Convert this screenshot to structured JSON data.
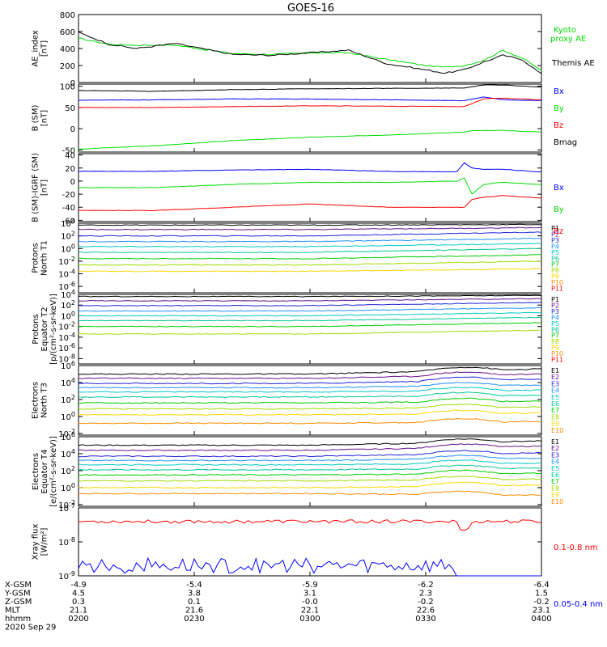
{
  "title": "GOES-16",
  "colors": {
    "black": "#000000",
    "blue": "#0000ff",
    "green": "#00dd00",
    "red": "#ff0000",
    "p": [
      "#000000",
      "#6a0f8e",
      "#2222dd",
      "#1e90ff",
      "#00c8c8",
      "#00c896",
      "#00cc00",
      "#a0dc00",
      "#ffd700",
      "#ff8c00",
      "#ff0000",
      "#c80000"
    ]
  },
  "chart_data": [
    {
      "id": "ae",
      "type": "line",
      "ylabel": [
        "AE_index",
        "[nT]"
      ],
      "ylim": [
        0,
        800
      ],
      "yticks": [
        "0",
        "200",
        "400",
        "600",
        "800"
      ],
      "series": [
        {
          "name": "Kyoto proxy AE",
          "color": "#00dd00",
          "x": [
            0,
            8,
            15,
            25,
            40,
            50,
            60,
            70,
            80,
            90,
            95,
            100,
            105,
            110,
            115,
            120
          ],
          "y": [
            520,
            450,
            440,
            440,
            340,
            330,
            350,
            350,
            270,
            200,
            180,
            200,
            260,
            380,
            290,
            140
          ]
        },
        {
          "name": "Themis AE",
          "color": "#000000",
          "x": [
            0,
            8,
            15,
            25,
            40,
            50,
            60,
            70,
            80,
            90,
            95,
            100,
            105,
            110,
            115,
            120
          ],
          "y": [
            590,
            450,
            400,
            460,
            330,
            320,
            350,
            380,
            220,
            150,
            110,
            150,
            240,
            320,
            270,
            100
          ]
        }
      ]
    },
    {
      "id": "bsm",
      "type": "line",
      "ylabel": [
        "B (SM)",
        "[nT]"
      ],
      "ylim": [
        -55,
        105
      ],
      "yticks": [
        "-50",
        "0",
        "50",
        "100"
      ],
      "series": [
        {
          "name": "Bx",
          "color": "#0000ff",
          "x": [
            0,
            20,
            40,
            60,
            80,
            100,
            105,
            110,
            120
          ],
          "y": [
            67,
            68,
            70,
            70,
            68,
            66,
            75,
            68,
            66
          ]
        },
        {
          "name": "By",
          "color": "#00dd00",
          "x": [
            0,
            20,
            40,
            60,
            80,
            100,
            102,
            110,
            120
          ],
          "y": [
            -48,
            -40,
            -28,
            -20,
            -15,
            -8,
            -5,
            -4,
            -8
          ]
        },
        {
          "name": "Bz",
          "color": "#ff0000",
          "x": [
            0,
            20,
            40,
            60,
            80,
            100,
            105,
            110,
            120
          ],
          "y": [
            50,
            50,
            52,
            54,
            53,
            52,
            70,
            72,
            68
          ]
        },
        {
          "name": "Bmag",
          "color": "#000000",
          "x": [
            0,
            20,
            40,
            60,
            80,
            100,
            105,
            110,
            120
          ],
          "y": [
            90,
            88,
            92,
            94,
            95,
            96,
            103,
            103,
            98
          ]
        }
      ]
    },
    {
      "id": "bigrf",
      "type": "line",
      "ylabel": [
        "B (SM)-IGRF (SM)",
        "[nT]"
      ],
      "ylim": [
        -62,
        42
      ],
      "yticks": [
        "-60",
        "-40",
        "-20",
        "0",
        "20",
        "40"
      ],
      "series": [
        {
          "name": "Bx",
          "color": "#0000ff",
          "x": [
            0,
            20,
            40,
            60,
            80,
            98,
            100,
            102,
            105,
            110,
            120
          ],
          "y": [
            15,
            15,
            17,
            18,
            15,
            14,
            28,
            20,
            18,
            18,
            14
          ]
        },
        {
          "name": "By",
          "color": "#00dd00",
          "x": [
            0,
            20,
            40,
            60,
            80,
            98,
            100,
            102,
            105,
            110,
            120
          ],
          "y": [
            -10,
            -10,
            -5,
            -2,
            -2,
            0,
            5,
            -20,
            -5,
            -2,
            -5
          ]
        },
        {
          "name": "Bz",
          "color": "#ff0000",
          "x": [
            0,
            20,
            40,
            60,
            80,
            98,
            100,
            102,
            105,
            110,
            120
          ],
          "y": [
            -45,
            -45,
            -40,
            -35,
            -40,
            -40,
            -40,
            -28,
            -25,
            -22,
            -26
          ]
        }
      ]
    },
    {
      "id": "pn",
      "type": "line",
      "log": true,
      "ylabel": [
        "Protons",
        "North T1"
      ],
      "ylim": [
        -7,
        4
      ],
      "yticks": [
        "10^4",
        "10^2",
        "10^0",
        "10^-2",
        "10^-4",
        "10^-6"
      ],
      "series": [
        {
          "name": "P1",
          "levels": [
            3.7,
            3.8
          ]
        },
        {
          "name": "P2",
          "levels": [
            3.0,
            3.3
          ]
        },
        {
          "name": "P3",
          "levels": [
            2.0,
            2.6
          ]
        },
        {
          "name": "P4",
          "levels": [
            1.1,
            1.6
          ]
        },
        {
          "name": "P5",
          "levels": [
            0.3,
            0.8
          ]
        },
        {
          "name": "P6",
          "levels": [
            -0.6,
            0.0
          ]
        },
        {
          "name": "P7",
          "levels": [
            -1.6,
            -1.0
          ]
        },
        {
          "name": "P8",
          "levels": [
            -2.6,
            -2.0
          ]
        },
        {
          "name": "P9",
          "levels": [
            -3.6,
            -3.2
          ]
        },
        {
          "name": "P10",
          "levels": null
        },
        {
          "name": "P11",
          "levels": null
        }
      ]
    },
    {
      "id": "pe",
      "type": "line",
      "log": true,
      "ylabel": [
        "Protons",
        "Equator T2",
        "[p/(cm²-s-sr-keV)]"
      ],
      "ylim": [
        -9,
        4
      ],
      "yticks": [
        "10^4",
        "10^2",
        "10^0",
        "10^-2",
        "10^-4",
        "10^-6",
        "10^-8"
      ],
      "series": [
        {
          "name": "P1",
          "levels": [
            3.6,
            3.8
          ]
        },
        {
          "name": "P2",
          "levels": [
            2.8,
            3.2
          ]
        },
        {
          "name": "P3",
          "levels": [
            1.9,
            2.5
          ]
        },
        {
          "name": "P4",
          "levels": [
            0.9,
            1.5
          ]
        },
        {
          "name": "P5",
          "levels": [
            0.0,
            0.6
          ]
        },
        {
          "name": "P6",
          "levels": [
            -0.9,
            -0.3
          ]
        },
        {
          "name": "P7",
          "levels": [
            -2.0,
            -1.3
          ]
        },
        {
          "name": "P8",
          "levels": [
            -3.4,
            -2.7
          ]
        },
        {
          "name": "P9",
          "levels": null
        },
        {
          "name": "P10",
          "levels": null
        },
        {
          "name": "P11",
          "levels": null
        }
      ]
    },
    {
      "id": "en",
      "type": "line",
      "log": true,
      "ylabel": [
        "Electrons",
        "North T3"
      ],
      "ylim": [
        -2.2,
        6
      ],
      "yticks": [
        "10^6",
        "10^4",
        "10^2",
        "10^0",
        "10^-2"
      ],
      "series": [
        {
          "name": "E1",
          "levels": [
            5.0,
            5.6
          ]
        },
        {
          "name": "E2",
          "levels": [
            4.5,
            5.0
          ]
        },
        {
          "name": "E3",
          "levels": [
            3.9,
            4.4
          ]
        },
        {
          "name": "E4",
          "levels": [
            3.4,
            3.7
          ]
        },
        {
          "name": "E5",
          "levels": [
            2.9,
            3.1
          ]
        },
        {
          "name": "E6",
          "levels": [
            2.3,
            2.5
          ]
        },
        {
          "name": "E7",
          "levels": [
            1.6,
            1.8
          ]
        },
        {
          "name": "E8",
          "levels": [
            0.9,
            1.1
          ]
        },
        {
          "name": "E9",
          "levels": [
            0.2,
            0.4
          ]
        },
        {
          "name": "E10",
          "levels": [
            -0.8,
            -0.6
          ]
        }
      ]
    },
    {
      "id": "ee",
      "type": "line",
      "log": true,
      "ylabel": [
        "Electrons",
        "Equator T4",
        "[e/(cm²-s-sr-keV)]"
      ],
      "ylim": [
        -2.2,
        6
      ],
      "yticks": [
        "10^6",
        "10^4",
        "10^2",
        "10^0",
        "10^-2"
      ],
      "series": [
        {
          "name": "E1",
          "levels": [
            5.0,
            5.5
          ]
        },
        {
          "name": "E2",
          "levels": [
            4.4,
            4.9
          ]
        },
        {
          "name": "E3",
          "levels": [
            3.7,
            4.1
          ]
        },
        {
          "name": "E4",
          "levels": [
            3.2,
            3.5
          ]
        },
        {
          "name": "E5",
          "levels": [
            2.7,
            2.9
          ]
        },
        {
          "name": "E6",
          "levels": [
            2.1,
            2.3
          ]
        },
        {
          "name": "E7",
          "levels": [
            1.5,
            1.7
          ]
        },
        {
          "name": "E8",
          "levels": [
            0.8,
            1.0
          ]
        },
        {
          "name": "E9",
          "levels": [
            0.0,
            0.3
          ]
        },
        {
          "name": "E10",
          "levels": [
            -0.7,
            -0.9
          ]
        }
      ]
    },
    {
      "id": "xray",
      "type": "line",
      "log": true,
      "ylabel": [
        "Xray flux",
        "[W/m²]"
      ],
      "ylim": [
        -9,
        -7
      ],
      "yticks": [
        "10^-7",
        "10^-8",
        "10^-9"
      ],
      "series": [
        {
          "name": "0.1-0.8 nm",
          "color": "#ff0000",
          "y": -7.4
        },
        {
          "name": "0.05-0.4 nm",
          "color": "#0000ff",
          "y": -8.7
        }
      ]
    }
  ],
  "xaxis": {
    "rows": [
      {
        "label": "X-GSM",
        "values": [
          "-4.9",
          "-5.4",
          "-5.9",
          "-6.2",
          "-6.4"
        ]
      },
      {
        "label": "Y-GSM",
        "values": [
          "4.5",
          "3.8",
          "3.1",
          "2.3",
          "1.5"
        ]
      },
      {
        "label": "Z-GSM",
        "values": [
          "0.3",
          "0.1",
          "-0.0",
          "-0.2",
          "-0.2"
        ]
      },
      {
        "label": "MLT",
        "values": [
          "21.1",
          "21.6",
          "22.1",
          "22.6",
          "23.1"
        ]
      },
      {
        "label": "hhmm",
        "values": [
          "0200",
          "0230",
          "0300",
          "0330",
          "0400"
        ]
      }
    ],
    "date": "2020 Sep 29"
  }
}
